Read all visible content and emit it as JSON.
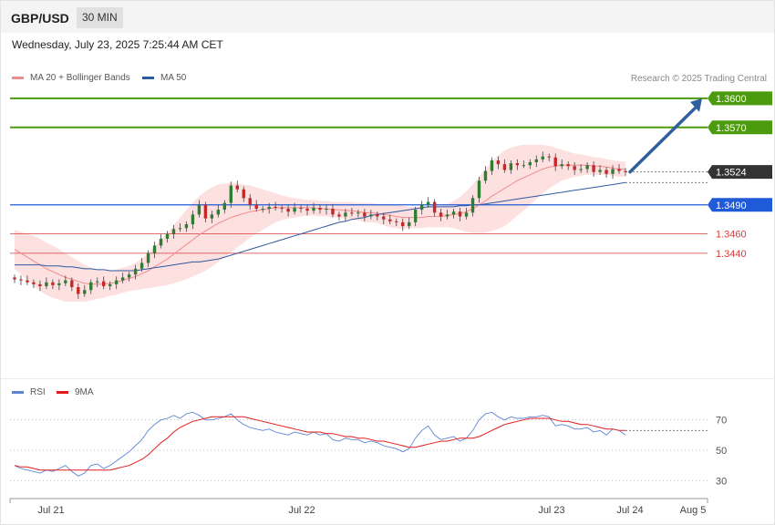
{
  "header": {
    "symbol": "GBP/USD",
    "timeframe": "30 MIN"
  },
  "datetime": "Wednesday, July 23, 2025 7:25:44 AM CET",
  "legend": {
    "ma20": {
      "label": "MA 20 + Bollinger Bands",
      "color": "#f28b8b"
    },
    "ma50": {
      "label": "MA 50",
      "color": "#2e5aa0"
    }
  },
  "credit": "Research © 2025 Trading Central",
  "rsi_legend": {
    "rsi": {
      "label": "RSI",
      "color": "#5b84d6"
    },
    "ma9": {
      "label": "9MA",
      "color": "#e31a1a"
    }
  },
  "colors": {
    "resistance": "#4c9a0e",
    "support_blue": "#1f5bd8",
    "support_red": "#d93a3a",
    "last_price": "#333333",
    "up_candle": "#2e7d32",
    "down_candle": "#c62828",
    "band_fill": "#fde0e0",
    "arrow": "#2f5f9e"
  },
  "chart_data": [
    {
      "type": "candlestick",
      "title": "GBP/USD",
      "ylim": [
        1.3325,
        1.3615
      ],
      "x_labels": [
        "Jul 21",
        "Jul 22",
        "Jul 23",
        "Jul 24",
        "Aug 5"
      ],
      "levels": [
        {
          "label": "1.3600",
          "value": 1.36,
          "kind": "resistance"
        },
        {
          "label": "1.3570",
          "value": 1.357,
          "kind": "resistance"
        },
        {
          "label": "1.3524",
          "value": 1.3524,
          "kind": "last"
        },
        {
          "label": "1.3490",
          "value": 1.349,
          "kind": "support_blue"
        },
        {
          "label": "1.3460",
          "value": 1.346,
          "kind": "support_red"
        },
        {
          "label": "1.3440",
          "value": 1.344,
          "kind": "support_red"
        }
      ],
      "close": [
        1.3413,
        1.3412,
        1.341,
        1.3408,
        1.3406,
        1.341,
        1.3407,
        1.3409,
        1.3412,
        1.3405,
        1.3398,
        1.3402,
        1.341,
        1.3411,
        1.3406,
        1.3408,
        1.3412,
        1.3415,
        1.3418,
        1.3424,
        1.343,
        1.344,
        1.3448,
        1.3455,
        1.346,
        1.3465,
        1.3466,
        1.347,
        1.348,
        1.349,
        1.3476,
        1.348,
        1.3485,
        1.3492,
        1.351,
        1.3506,
        1.3497,
        1.349,
        1.3486,
        1.3486,
        1.3488,
        1.3487,
        1.3486,
        1.3483,
        1.3487,
        1.3486,
        1.3484,
        1.3487,
        1.3485,
        1.3486,
        1.348,
        1.3478,
        1.3482,
        1.3481,
        1.3482,
        1.3478,
        1.348,
        1.3478,
        1.3475,
        1.3473,
        1.3472,
        1.3468,
        1.3472,
        1.3485,
        1.349,
        1.3493,
        1.3482,
        1.3478,
        1.348,
        1.3483,
        1.3478,
        1.3482,
        1.3497,
        1.3515,
        1.3525,
        1.3536,
        1.3532,
        1.3526,
        1.3533,
        1.3531,
        1.3531,
        1.3534,
        1.3537,
        1.354,
        1.3539,
        1.353,
        1.3532,
        1.353,
        1.3526,
        1.3527,
        1.3531,
        1.3524,
        1.3526,
        1.3522,
        1.3527,
        1.3525,
        1.3524
      ],
      "ma20": [
        1.3444,
        1.344,
        1.3436,
        1.3432,
        1.3428,
        1.3424,
        1.3421,
        1.3418,
        1.3415,
        1.3413,
        1.3411,
        1.3409,
        1.3408,
        1.3408,
        1.3408,
        1.3409,
        1.341,
        1.3412,
        1.3414,
        1.3416,
        1.3419,
        1.3422,
        1.3426,
        1.343,
        1.3434,
        1.3439,
        1.3444,
        1.3449,
        1.3454,
        1.3459,
        1.3463,
        1.3467,
        1.3471,
        1.3474,
        1.3477,
        1.3479,
        1.3481,
        1.3483,
        1.3484,
        1.3485,
        1.3486,
        1.3487,
        1.3487,
        1.3487,
        1.3487,
        1.3487,
        1.3487,
        1.3487,
        1.3486,
        1.3486,
        1.3485,
        1.3485,
        1.3484,
        1.3484,
        1.3483,
        1.3482,
        1.3482,
        1.3481,
        1.348,
        1.3479,
        1.3478,
        1.3477,
        1.3477,
        1.3477,
        1.3477,
        1.3478,
        1.3478,
        1.3478,
        1.3479,
        1.348,
        1.3481,
        1.3483,
        1.3486,
        1.349,
        1.3494,
        1.3499,
        1.3503,
        1.3507,
        1.3511,
        1.3515,
        1.3518,
        1.3521,
        1.3524,
        1.3527,
        1.3529,
        1.353,
        1.3531,
        1.3531,
        1.3531,
        1.3531,
        1.3531,
        1.353,
        1.353,
        1.3529,
        1.3528,
        1.3527,
        1.3527
      ],
      "ma50": [
        1.3428,
        1.3428,
        1.3428,
        1.3428,
        1.3428,
        1.3427,
        1.3427,
        1.3427,
        1.3426,
        1.3426,
        1.3425,
        1.3424,
        1.3424,
        1.3423,
        1.3423,
        1.3422,
        1.3422,
        1.3422,
        1.3422,
        1.3422,
        1.3423,
        1.3424,
        1.3425,
        1.3426,
        1.3427,
        1.3428,
        1.3429,
        1.343,
        1.3431,
        1.3431,
        1.3432,
        1.3433,
        1.3434,
        1.3436,
        1.3438,
        1.344,
        1.3442,
        1.3444,
        1.3446,
        1.3448,
        1.345,
        1.3452,
        1.3454,
        1.3456,
        1.3458,
        1.346,
        1.3462,
        1.3464,
        1.3466,
        1.3468,
        1.347,
        1.3472,
        1.3473,
        1.3475,
        1.3476,
        1.3477,
        1.3479,
        1.348,
        1.3481,
        1.3482,
        1.3483,
        1.3484,
        1.3485,
        1.3486,
        1.3487,
        1.3488,
        1.3488,
        1.3488,
        1.3488,
        1.3488,
        1.3489,
        1.3489,
        1.349,
        1.349,
        1.3491,
        1.3492,
        1.3493,
        1.3494,
        1.3495,
        1.3496,
        1.3497,
        1.3498,
        1.3499,
        1.35,
        1.3501,
        1.3502,
        1.3503,
        1.3504,
        1.3505,
        1.3506,
        1.3507,
        1.3508,
        1.3509,
        1.351,
        1.3511,
        1.3512,
        1.3513
      ],
      "bb_width": [
        0.002,
        0.0022,
        0.0024,
        0.0026,
        0.0027,
        0.0027,
        0.0027,
        0.0026,
        0.0025,
        0.0023,
        0.0021,
        0.0019,
        0.0017,
        0.0015,
        0.0014,
        0.0013,
        0.0013,
        0.0013,
        0.0013,
        0.0014,
        0.0016,
        0.0018,
        0.0021,
        0.0024,
        0.0027,
        0.003,
        0.0033,
        0.0036,
        0.0038,
        0.004,
        0.0041,
        0.0041,
        0.004,
        0.0038,
        0.0036,
        0.0033,
        0.003,
        0.0027,
        0.0024,
        0.0021,
        0.0018,
        0.0015,
        0.0013,
        0.0011,
        0.001,
        0.0009,
        0.0008,
        0.0008,
        0.0008,
        0.0008,
        0.0008,
        0.0008,
        0.0009,
        0.0009,
        0.0009,
        0.001,
        0.001,
        0.001,
        0.0011,
        0.0012,
        0.0012,
        0.0012,
        0.0011,
        0.0011,
        0.0011,
        0.0011,
        0.0011,
        0.0011,
        0.0012,
        0.0014,
        0.0017,
        0.0021,
        0.0025,
        0.0029,
        0.0033,
        0.0036,
        0.0038,
        0.0039,
        0.0038,
        0.0036,
        0.0034,
        0.0031,
        0.0028,
        0.0025,
        0.0022,
        0.0019,
        0.0016,
        0.0014,
        0.0012,
        0.0011,
        0.001,
        0.0009,
        0.0009,
        0.0008,
        0.0008,
        0.0008,
        0.0008
      ],
      "projection": {
        "from_value": 1.3524,
        "to_value": 1.36
      }
    },
    {
      "type": "line",
      "title": "RSI",
      "ylim": [
        20,
        80
      ],
      "y_ticks": [
        30,
        50,
        70
      ],
      "series": [
        {
          "name": "RSI",
          "values": [
            40,
            38,
            37,
            36,
            35,
            37,
            36,
            38,
            40,
            36,
            33,
            35,
            40,
            41,
            38,
            40,
            43,
            46,
            49,
            53,
            57,
            63,
            67,
            70,
            71,
            73,
            71,
            74,
            75,
            73,
            70,
            70,
            71,
            72,
            74,
            70,
            67,
            65,
            64,
            63,
            64,
            62,
            61,
            60,
            62,
            61,
            60,
            62,
            60,
            61,
            57,
            56,
            58,
            57,
            57,
            55,
            56,
            55,
            53,
            52,
            51,
            49,
            51,
            58,
            63,
            66,
            60,
            57,
            58,
            59,
            56,
            58,
            63,
            70,
            74,
            75,
            72,
            70,
            72,
            71,
            71,
            72,
            72,
            73,
            72,
            66,
            67,
            66,
            64,
            64,
            65,
            62,
            63,
            60,
            64,
            63,
            60
          ]
        },
        {
          "name": "9MA",
          "values": [
            40,
            39,
            39,
            38,
            37,
            37,
            37,
            37,
            37,
            37,
            37,
            37,
            37,
            37,
            37,
            37,
            38,
            39,
            40,
            42,
            44,
            47,
            51,
            55,
            58,
            62,
            65,
            67,
            69,
            70,
            71,
            72,
            72,
            72,
            72,
            72,
            72,
            71,
            70,
            69,
            68,
            67,
            66,
            65,
            64,
            63,
            62,
            62,
            62,
            61,
            61,
            60,
            59,
            59,
            58,
            58,
            57,
            56,
            56,
            55,
            54,
            53,
            52,
            52,
            53,
            54,
            55,
            56,
            56,
            57,
            58,
            58,
            58,
            59,
            61,
            63,
            65,
            67,
            68,
            69,
            70,
            71,
            71,
            71,
            71,
            70,
            69,
            69,
            68,
            67,
            67,
            66,
            65,
            64,
            64,
            63,
            63
          ]
        }
      ]
    }
  ]
}
